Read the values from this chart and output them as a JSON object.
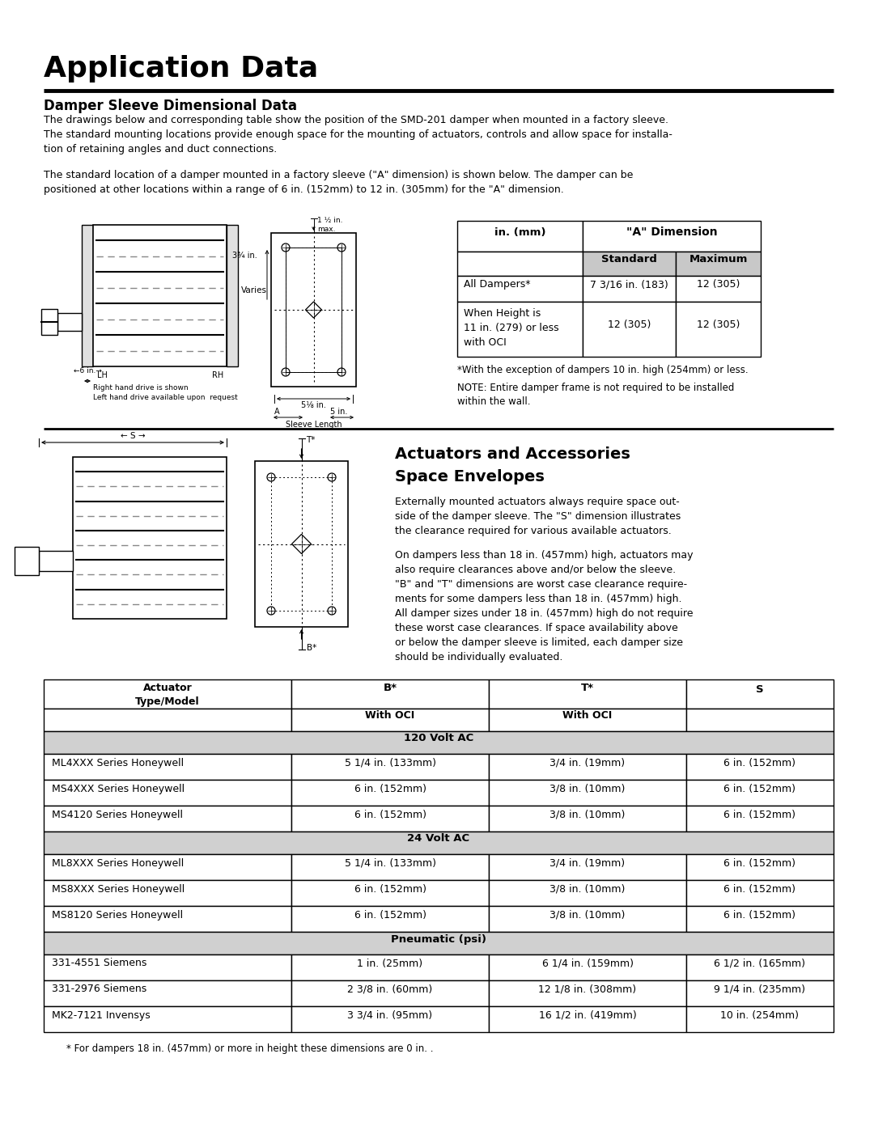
{
  "title": "Application Data",
  "section1_title": "Damper Sleeve Dimensional Data",
  "section1_para1": "The drawings below and corresponding table show the position of the SMD-201 damper when mounted in a factory sleeve.\nThe standard mounting locations provide enough space for the mounting of actuators, controls and allow space for installa-\ntion of retaining angles and duct connections.",
  "section1_para2": "The standard location of a damper mounted in a factory sleeve (\"A\" dimension) is shown below. The damper can be\npositioned at other locations within a range of 6 in. (152mm) to 12 in. (305mm) for the \"A\" dimension.",
  "dim_table_header1": "in. (mm)",
  "dim_table_header2": "\"A\" Dimension",
  "dim_table_subheader1": "Standard",
  "dim_table_subheader2": "Maximum",
  "dim_table_rows": [
    [
      "All Dampers*",
      "7 3/16 in. (183)",
      "12 (305)"
    ],
    [
      "When Height is\n11 in. (279) or less\nwith OCI",
      "12 (305)",
      "12 (305)"
    ]
  ],
  "dim_note1": "*With the exception of dampers 10 in. high (254mm) or less.",
  "dim_note2": "NOTE: Entire damper frame is not required to be installed\nwithin the wall.",
  "section2_title1": "Actuators and Accessories",
  "section2_title2": "Space Envelopes",
  "section2_para1": "Externally mounted actuators always require space out-\nside of the damper sleeve. The \"S\" dimension illustrates\nthe clearance required for various available actuators.",
  "section2_para2": "On dampers less than 18 in. (457mm) high, actuators may\nalso require clearances above and/or below the sleeve.\n\"B\" and \"T\" dimensions are worst case clearance require-\nments for some dampers less than 18 in. (457mm) high.\nAll damper sizes under 18 in. (457mm) high do not require\nthese worst case clearances. If space availability above\nor below the damper sleeve is limited, each damper size\nshould be individually evaluated.",
  "act_section_120": "120 Volt AC",
  "act_section_24": "24 Volt AC",
  "act_section_pneu": "Pneumatic (psi)",
  "act_rows_120": [
    [
      "ML4XXX Series Honeywell",
      "5 1/4 in. (133mm)",
      "3/4 in. (19mm)",
      "6 in. (152mm)"
    ],
    [
      "MS4XXX Series Honeywell",
      "6 in. (152mm)",
      "3/8 in. (10mm)",
      "6 in. (152mm)"
    ],
    [
      "MS4120 Series Honeywell",
      "6 in. (152mm)",
      "3/8 in. (10mm)",
      "6 in. (152mm)"
    ]
  ],
  "act_rows_24": [
    [
      "ML8XXX Series Honeywell",
      "5 1/4 in. (133mm)",
      "3/4 in. (19mm)",
      "6 in. (152mm)"
    ],
    [
      "MS8XXX Series Honeywell",
      "6 in. (152mm)",
      "3/8 in. (10mm)",
      "6 in. (152mm)"
    ],
    [
      "MS8120 Series Honeywell",
      "6 in. (152mm)",
      "3/8 in. (10mm)",
      "6 in. (152mm)"
    ]
  ],
  "act_rows_pneu": [
    [
      "331-4551 Siemens",
      "1 in. (25mm)",
      "6 1/4 in. (159mm)",
      "6 1/2 in. (165mm)"
    ],
    [
      "331-2976 Siemens",
      "2 3/8 in. (60mm)",
      "12 1/8 in. (308mm)",
      "9 1/4 in. (235mm)"
    ],
    [
      "MK2-7121 Invensys",
      "3 3/4 in. (95mm)",
      "16 1/2 in. (419mm)",
      "10 in. (254mm)"
    ]
  ],
  "act_footnote": "* For dampers 18 in. (457mm) or more in height these dimensions are 0 in. .",
  "bg_color": "#ffffff",
  "header_bg": "#c8c8c8",
  "section_bg": "#d0d0d0",
  "border_color": "#000000",
  "text_color": "#000000"
}
